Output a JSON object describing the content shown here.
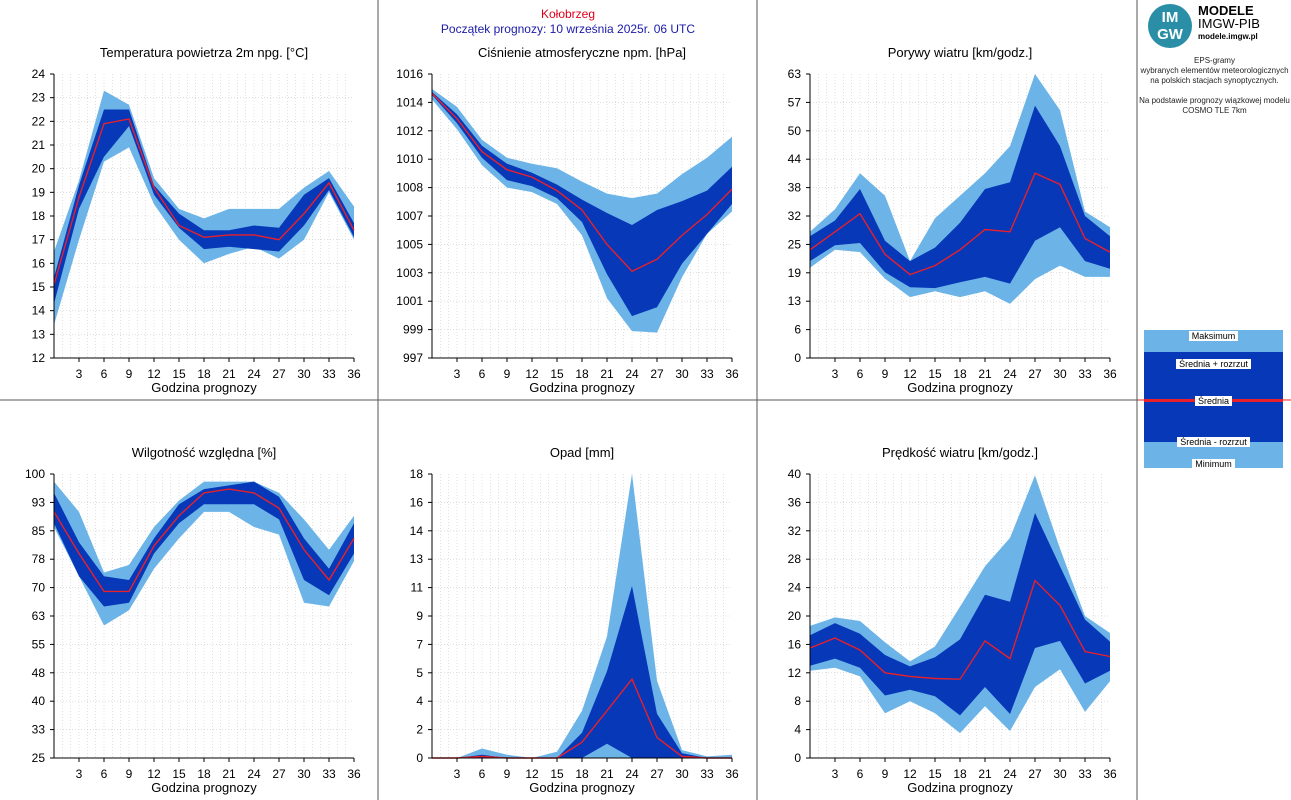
{
  "header": {
    "station": "Kołobrzeg",
    "start": "Początek prognozy: 10 września 2025r. 06 UTC"
  },
  "side": {
    "logo_text": "IM GW",
    "brand1": "MODELE",
    "brand2": "IMGW-PIB",
    "brand3": "modele.imgw.pl",
    "desc1": "EPS-gramy",
    "desc2": "wybranych elementów meteorologicznych",
    "desc3": "na polskich stacjach  synoptycznych.",
    "desc4": "Na podstawie prognozy wiązkowej modelu",
    "desc5": "COSMO TLE 7km"
  },
  "legend": {
    "max": "Maksimum",
    "upper": "Średnia + rozrzut",
    "mean": "Średnia",
    "lower": "Średnia - rozrzut",
    "min": "Minimum"
  },
  "colors": {
    "outer": "#6cb4e8",
    "inner": "#0638b8",
    "mean": "#e8202c",
    "grid": "#cccccc"
  },
  "chart_data": [
    {
      "type": "area",
      "title": "Temperatura powietrza 2m npg. [°C]",
      "xlabel": "Godzina prognozy",
      "x": [
        0,
        3,
        6,
        9,
        12,
        15,
        18,
        21,
        24,
        27,
        30,
        33,
        36
      ],
      "xticks": [
        "3",
        "6",
        "9",
        "12",
        "15",
        "18",
        "21",
        "24",
        "27",
        "30",
        "33",
        "36"
      ],
      "yticks": [
        "12",
        "13",
        "14",
        "15",
        "16",
        "17",
        "18",
        "19",
        "20",
        "21",
        "22",
        "23",
        "24"
      ],
      "ylim": [
        12,
        24
      ],
      "min": [
        13.4,
        17.0,
        20.3,
        20.9,
        18.5,
        17.0,
        16.0,
        16.4,
        16.7,
        16.2,
        17.0,
        19.0,
        17.0
      ],
      "lower": [
        14.3,
        18.3,
        20.5,
        21.8,
        18.9,
        17.5,
        16.6,
        16.7,
        16.6,
        16.5,
        17.6,
        19.1,
        17.1
      ],
      "mean": [
        15.1,
        18.8,
        21.9,
        22.1,
        19.2,
        17.6,
        17.1,
        17.2,
        17.2,
        17.0,
        18.1,
        19.4,
        17.4
      ],
      "upper": [
        15.4,
        19.3,
        22.5,
        22.5,
        19.3,
        18.1,
        17.4,
        17.4,
        17.6,
        17.5,
        18.9,
        19.6,
        17.7
      ],
      "max": [
        16.5,
        19.5,
        23.3,
        22.7,
        19.6,
        18.3,
        17.9,
        18.3,
        18.3,
        18.3,
        19.2,
        19.9,
        18.4
      ]
    },
    {
      "type": "area",
      "title": "Ciśnienie atmosferyczne npm. [hPa]",
      "xlabel": "Godzina prognozy",
      "x": [
        0,
        3,
        6,
        9,
        12,
        15,
        18,
        21,
        24,
        27,
        30,
        33,
        36
      ],
      "xticks": [
        "3",
        "6",
        "9",
        "12",
        "15",
        "18",
        "21",
        "24",
        "27",
        "30",
        "33",
        "36"
      ],
      "yticks": [
        "997",
        "999",
        "1001",
        "1003",
        "1005",
        "1007",
        "1008",
        "1010",
        "1012",
        "1014",
        "1016"
      ],
      "ylim": [
        997,
        1016
      ],
      "min": [
        1014.3,
        1012.3,
        1009.9,
        1008.4,
        1008.1,
        1007.3,
        1005.2,
        1001.0,
        998.8,
        998.7,
        1002.4,
        1005.3,
        1006.8
      ],
      "lower": [
        1014.6,
        1012.7,
        1010.4,
        1008.9,
        1008.5,
        1007.7,
        1006.1,
        1002.6,
        999.8,
        1000.4,
        1003.3,
        1005.3,
        1007.3
      ],
      "mean": [
        1014.7,
        1013.0,
        1010.8,
        1009.6,
        1009.1,
        1008.2,
        1006.9,
        1004.6,
        1002.8,
        1003.6,
        1005.2,
        1006.6,
        1008.3
      ],
      "upper": [
        1014.8,
        1013.3,
        1011.2,
        1010.0,
        1009.4,
        1008.6,
        1007.6,
        1006.7,
        1005.9,
        1006.9,
        1007.5,
        1008.2,
        1009.8
      ],
      "max": [
        1015.0,
        1013.8,
        1011.6,
        1010.4,
        1010.0,
        1009.7,
        1008.8,
        1008.0,
        1007.7,
        1008.0,
        1009.3,
        1010.4,
        1011.8
      ]
    },
    {
      "type": "area",
      "title": "Porywy wiatru [km/godz.]",
      "xlabel": "Godzina prognozy",
      "x": [
        0,
        3,
        6,
        9,
        12,
        15,
        18,
        21,
        24,
        27,
        30,
        33,
        36
      ],
      "xticks": [
        "3",
        "6",
        "9",
        "12",
        "15",
        "18",
        "21",
        "24",
        "27",
        "30",
        "33",
        "36"
      ],
      "yticks": [
        "0",
        "6",
        "13",
        "19",
        "25",
        "32",
        "38",
        "44",
        "50",
        "57",
        "63"
      ],
      "ylim": [
        0,
        63
      ],
      "min": [
        20.0,
        24.0,
        23.5,
        17.6,
        13.5,
        14.8,
        13.5,
        14.8,
        12.0,
        17.5,
        20.5,
        18.0,
        18.0
      ],
      "lower": [
        21.5,
        25.0,
        25.5,
        19.0,
        15.7,
        15.5,
        16.8,
        18.0,
        16.5,
        26.0,
        29.0,
        21.5,
        19.8
      ],
      "mean": [
        24.0,
        28.0,
        32.0,
        23.0,
        18.5,
        20.5,
        24.0,
        28.5,
        28.0,
        41.0,
        38.5,
        26.5,
        23.5
      ],
      "upper": [
        27.0,
        30.5,
        37.5,
        26.0,
        21.5,
        24.5,
        30.0,
        37.5,
        39.0,
        56.0,
        47.0,
        31.5,
        27.0
      ],
      "max": [
        28.0,
        33.0,
        41.0,
        36.0,
        21.5,
        31.0,
        36.0,
        41.0,
        47.0,
        63.0,
        55.0,
        32.5,
        29.0
      ]
    },
    {
      "type": "area",
      "title": "Wilgotność względna [%]",
      "xlabel": "Godzina prognozy",
      "x": [
        0,
        3,
        6,
        9,
        12,
        15,
        18,
        21,
        24,
        27,
        30,
        33,
        36
      ],
      "xticks": [
        "3",
        "6",
        "9",
        "12",
        "15",
        "18",
        "21",
        "24",
        "27",
        "30",
        "33",
        "36"
      ],
      "yticks": [
        "25",
        "33",
        "40",
        "48",
        "55",
        "63",
        "70",
        "78",
        "85",
        "93",
        "100"
      ],
      "ylim": [
        25,
        100
      ],
      "min": [
        86,
        73,
        60,
        64,
        75,
        83,
        90,
        90,
        86,
        84,
        66,
        65,
        77
      ],
      "lower": [
        87,
        73,
        65,
        66,
        79,
        87,
        92,
        92,
        92,
        88,
        72,
        68,
        79
      ],
      "mean": [
        90,
        79,
        69,
        69,
        81,
        89,
        95,
        96,
        95,
        91,
        80,
        72,
        83
      ],
      "upper": [
        95,
        82,
        73,
        72,
        83,
        92,
        96,
        97,
        98,
        94,
        83,
        75,
        87
      ],
      "max": [
        98,
        90,
        74,
        76,
        86,
        93,
        98,
        98,
        98,
        95,
        88,
        80,
        89
      ]
    },
    {
      "type": "area",
      "title": "Opad [mm]",
      "xlabel": "Godzina prognozy",
      "x": [
        0,
        3,
        6,
        9,
        12,
        15,
        18,
        21,
        24,
        27,
        30,
        33,
        36
      ],
      "xticks": [
        "3",
        "6",
        "9",
        "12",
        "15",
        "18",
        "21",
        "24",
        "27",
        "30",
        "33",
        "36"
      ],
      "yticks": [
        "0",
        "2",
        "4",
        "5",
        "7",
        "9",
        "11",
        "13",
        "14",
        "16",
        "18"
      ],
      "ylim": [
        0,
        18
      ],
      "min": [
        0,
        0,
        0,
        0,
        0,
        0,
        0,
        0,
        0,
        0,
        0,
        0,
        0
      ],
      "lower": [
        0,
        0,
        0,
        0,
        0,
        0,
        0,
        0.9,
        0,
        0,
        0,
        0,
        0
      ],
      "mean": [
        0,
        0,
        0.1,
        0,
        0,
        0,
        1.0,
        3.0,
        5.0,
        1.3,
        0.1,
        0,
        0
      ],
      "upper": [
        0,
        0,
        0.2,
        0,
        0,
        0,
        1.6,
        5.5,
        10.9,
        2.8,
        0.3,
        0,
        0
      ],
      "max": [
        0,
        0,
        0.6,
        0.2,
        0,
        0.4,
        3.0,
        7.7,
        18.0,
        4.9,
        0.5,
        0.1,
        0.2
      ]
    },
    {
      "type": "area",
      "title": "Prędkość wiatru [km/godz.]",
      "xlabel": "Godzina prognozy",
      "x": [
        0,
        3,
        6,
        9,
        12,
        15,
        18,
        21,
        24,
        27,
        30,
        33,
        36
      ],
      "xticks": [
        "3",
        "6",
        "9",
        "12",
        "15",
        "18",
        "21",
        "24",
        "27",
        "30",
        "33",
        "36"
      ],
      "yticks": [
        "0",
        "4",
        "8",
        "12",
        "16",
        "20",
        "24",
        "28",
        "32",
        "36",
        "40"
      ],
      "ylim": [
        0,
        40
      ],
      "min": [
        12.3,
        12.7,
        11.5,
        6.3,
        8.0,
        6.3,
        3.5,
        7.3,
        3.8,
        10.0,
        12.5,
        6.5,
        10.8
      ],
      "lower": [
        13.0,
        14.0,
        12.7,
        8.8,
        9.6,
        8.7,
        6.0,
        10.0,
        6.2,
        15.5,
        16.5,
        10.5,
        12.3
      ],
      "mean": [
        15.5,
        16.9,
        15.2,
        12.0,
        11.5,
        11.2,
        11.1,
        16.5,
        14.0,
        25.0,
        21.5,
        15.0,
        14.3
      ],
      "upper": [
        17.3,
        19.0,
        17.5,
        14.5,
        12.9,
        14.2,
        16.7,
        23.0,
        22.0,
        34.5,
        27.0,
        19.5,
        16.4
      ],
      "max": [
        18.6,
        19.8,
        19.3,
        16.3,
        13.6,
        15.7,
        21.3,
        27.0,
        31.0,
        39.8,
        29.5,
        20.0,
        17.6
      ]
    }
  ]
}
